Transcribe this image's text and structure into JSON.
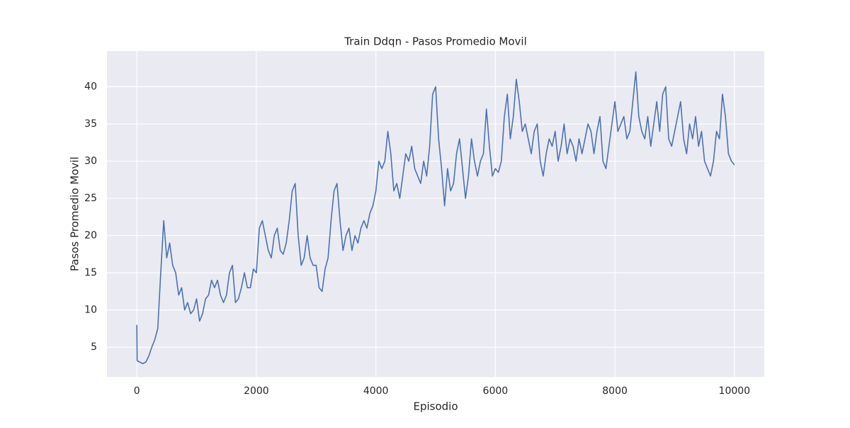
{
  "chart_data": {
    "type": "line",
    "title": "Train Ddqn - Pasos Promedio Movil",
    "x_label": "Episodio",
    "y_label": "Pasos Promedio Movil",
    "x": [
      0,
      5,
      50,
      100,
      150,
      200,
      250,
      300,
      350,
      400,
      450,
      500,
      550,
      600,
      650,
      700,
      750,
      800,
      850,
      900,
      950,
      1000,
      1050,
      1100,
      1150,
      1200,
      1250,
      1300,
      1350,
      1400,
      1450,
      1500,
      1550,
      1600,
      1650,
      1700,
      1750,
      1800,
      1850,
      1900,
      1950,
      2000,
      2050,
      2100,
      2150,
      2200,
      2250,
      2300,
      2350,
      2400,
      2450,
      2500,
      2550,
      2600,
      2650,
      2700,
      2750,
      2800,
      2850,
      2900,
      2950,
      3000,
      3050,
      3100,
      3150,
      3200,
      3250,
      3300,
      3350,
      3400,
      3450,
      3500,
      3550,
      3600,
      3650,
      3700,
      3750,
      3800,
      3850,
      3900,
      3950,
      4000,
      4050,
      4100,
      4150,
      4200,
      4250,
      4300,
      4350,
      4400,
      4450,
      4500,
      4550,
      4600,
      4650,
      4700,
      4750,
      4800,
      4850,
      4900,
      4950,
      5000,
      5050,
      5100,
      5150,
      5200,
      5250,
      5300,
      5350,
      5400,
      5450,
      5500,
      5550,
      5600,
      5650,
      5700,
      5750,
      5800,
      5850,
      5900,
      5950,
      6000,
      6050,
      6100,
      6150,
      6200,
      6250,
      6300,
      6350,
      6400,
      6450,
      6500,
      6550,
      6600,
      6650,
      6700,
      6750,
      6800,
      6850,
      6900,
      6950,
      7000,
      7050,
      7100,
      7150,
      7200,
      7250,
      7300,
      7350,
      7400,
      7450,
      7500,
      7550,
      7600,
      7650,
      7700,
      7750,
      7800,
      7850,
      7900,
      7950,
      8000,
      8050,
      8100,
      8150,
      8200,
      8250,
      8300,
      8350,
      8400,
      8450,
      8500,
      8550,
      8600,
      8650,
      8700,
      8750,
      8800,
      8850,
      8900,
      8950,
      9000,
      9050,
      9100,
      9150,
      9200,
      9250,
      9300,
      9350,
      9400,
      9450,
      9500,
      9550,
      9600,
      9650,
      9700,
      9750,
      9800,
      9850,
      9900,
      9950,
      10000
    ],
    "values": [
      8,
      3.2,
      3,
      2.8,
      3,
      3.8,
      5,
      6,
      7.5,
      15,
      22,
      17,
      19,
      16,
      15,
      12,
      13,
      10,
      11,
      9.5,
      10,
      11.5,
      8.5,
      9.5,
      11.5,
      12,
      14,
      13,
      14,
      12,
      11,
      12,
      15,
      16,
      11,
      11.5,
      13,
      15,
      13,
      13,
      15.5,
      15,
      21,
      22,
      20,
      18,
      17,
      20,
      21,
      18,
      17.5,
      19,
      22,
      26,
      27,
      20,
      16,
      17,
      20,
      17,
      16,
      16,
      13,
      12.5,
      15.5,
      17,
      22,
      26,
      27,
      22,
      18,
      20,
      21,
      18,
      20,
      19,
      21,
      22,
      21,
      23,
      24,
      26,
      30,
      29,
      30,
      34,
      31,
      26,
      27,
      25,
      28,
      31,
      30,
      32,
      29,
      28,
      27,
      30,
      28,
      32,
      39,
      40,
      33,
      29,
      24,
      29,
      26,
      27,
      31,
      33,
      29,
      25,
      28,
      33,
      30,
      28,
      30,
      31,
      37,
      32,
      28,
      29,
      28.5,
      30,
      36,
      39,
      33,
      36,
      41,
      38,
      34,
      35,
      33,
      31,
      34,
      35,
      30,
      28,
      31,
      33,
      32,
      34,
      30,
      32,
      35,
      31,
      33,
      32,
      30,
      33,
      31,
      33,
      35,
      34,
      31,
      34,
      36,
      30,
      29,
      32,
      35,
      38,
      34,
      35,
      36,
      33,
      34,
      38,
      42,
      36,
      34,
      33,
      36,
      32,
      35,
      38,
      34,
      39,
      40,
      33,
      32,
      34,
      36,
      38,
      33,
      31,
      35,
      33,
      36,
      32,
      34,
      30,
      29,
      28,
      30,
      34,
      33,
      39,
      36,
      31,
      30,
      29.5
    ],
    "color": "#4c72b0",
    "xlim": [
      -500,
      10500
    ],
    "xticks": [
      0,
      2000,
      4000,
      6000,
      8000,
      10000
    ],
    "ylim": [
      1,
      44.8
    ],
    "yticks": [
      5,
      10,
      15,
      20,
      25,
      30,
      35,
      40
    ],
    "grid": true
  }
}
